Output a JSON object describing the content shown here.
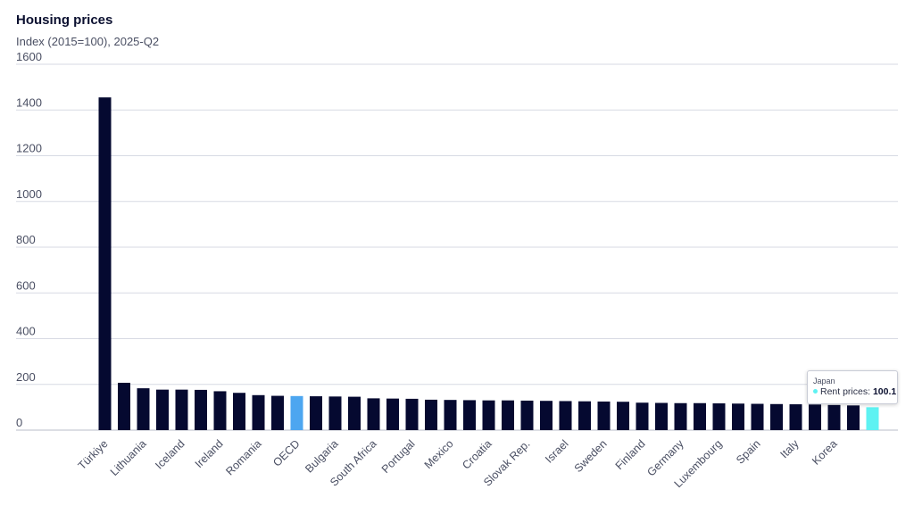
{
  "title": "Housing prices",
  "subtitle": "Index (2015=100), 2025-Q2",
  "colors": {
    "bar": "#050930",
    "highlight": "#4da6f0",
    "hover": "#5ef2f2",
    "grid": "#d7dae3",
    "axis": "#b9bdc9"
  },
  "tooltip": {
    "country": "Japan",
    "series": "Rent prices",
    "value": "100.1"
  },
  "chart_data": {
    "type": "bar",
    "title": "Housing prices",
    "subtitle": "Index (2015=100), 2025-Q2",
    "ylim": [
      0,
      1600
    ],
    "yticks": [
      0,
      200,
      400,
      600,
      800,
      1000,
      1200,
      1400,
      1600
    ],
    "grid": true,
    "categories": [
      "Türkiye",
      "",
      "Lithuania",
      "",
      "Iceland",
      "",
      "Ireland",
      "",
      "Romania",
      "",
      "OECD",
      "",
      "Bulgaria",
      "",
      "South Africa",
      "",
      "Portugal",
      "",
      "Mexico",
      "",
      "Croatia",
      "",
      "Slovak Rep.",
      "",
      "Israel",
      "",
      "Sweden",
      "",
      "Finland",
      "",
      "Germany",
      "",
      "Luxembourg",
      "",
      "Spain",
      "",
      "Italy",
      "",
      "Korea",
      "",
      "Japan"
    ],
    "values": [
      1455,
      207,
      183,
      177,
      177,
      176,
      170,
      163,
      153,
      150,
      149,
      148,
      147,
      146,
      139,
      138,
      137,
      133,
      132,
      131,
      130,
      130,
      129,
      128,
      127,
      126,
      125,
      124,
      120,
      119,
      118,
      118,
      117,
      116,
      115,
      114,
      113,
      112,
      110,
      108,
      100.1
    ],
    "highlight": {
      "OECD": "highlight",
      "Japan": "hover"
    }
  }
}
